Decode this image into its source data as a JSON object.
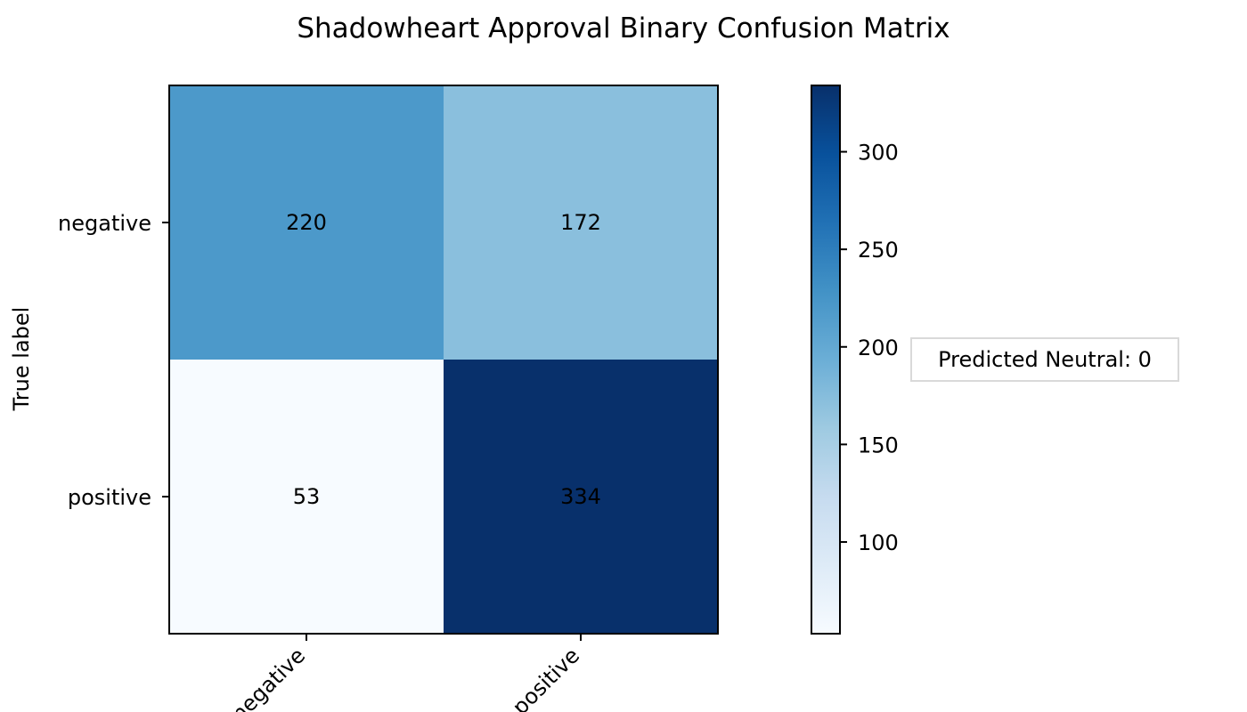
{
  "chart_data": {
    "type": "heatmap",
    "title": "Shadowheart Approval Binary Confusion Matrix",
    "ylabel": "True label",
    "xlabel": "",
    "row_labels": [
      "negative",
      "positive"
    ],
    "col_labels": [
      "negative",
      "positive"
    ],
    "values": [
      [
        220,
        172
      ],
      [
        53,
        334
      ]
    ],
    "colormap": "Blues",
    "colorbar": {
      "min": 53,
      "max": 334,
      "ticks": [
        100,
        150,
        200,
        250,
        300
      ]
    },
    "annotation": "Predicted Neutral: 0"
  }
}
